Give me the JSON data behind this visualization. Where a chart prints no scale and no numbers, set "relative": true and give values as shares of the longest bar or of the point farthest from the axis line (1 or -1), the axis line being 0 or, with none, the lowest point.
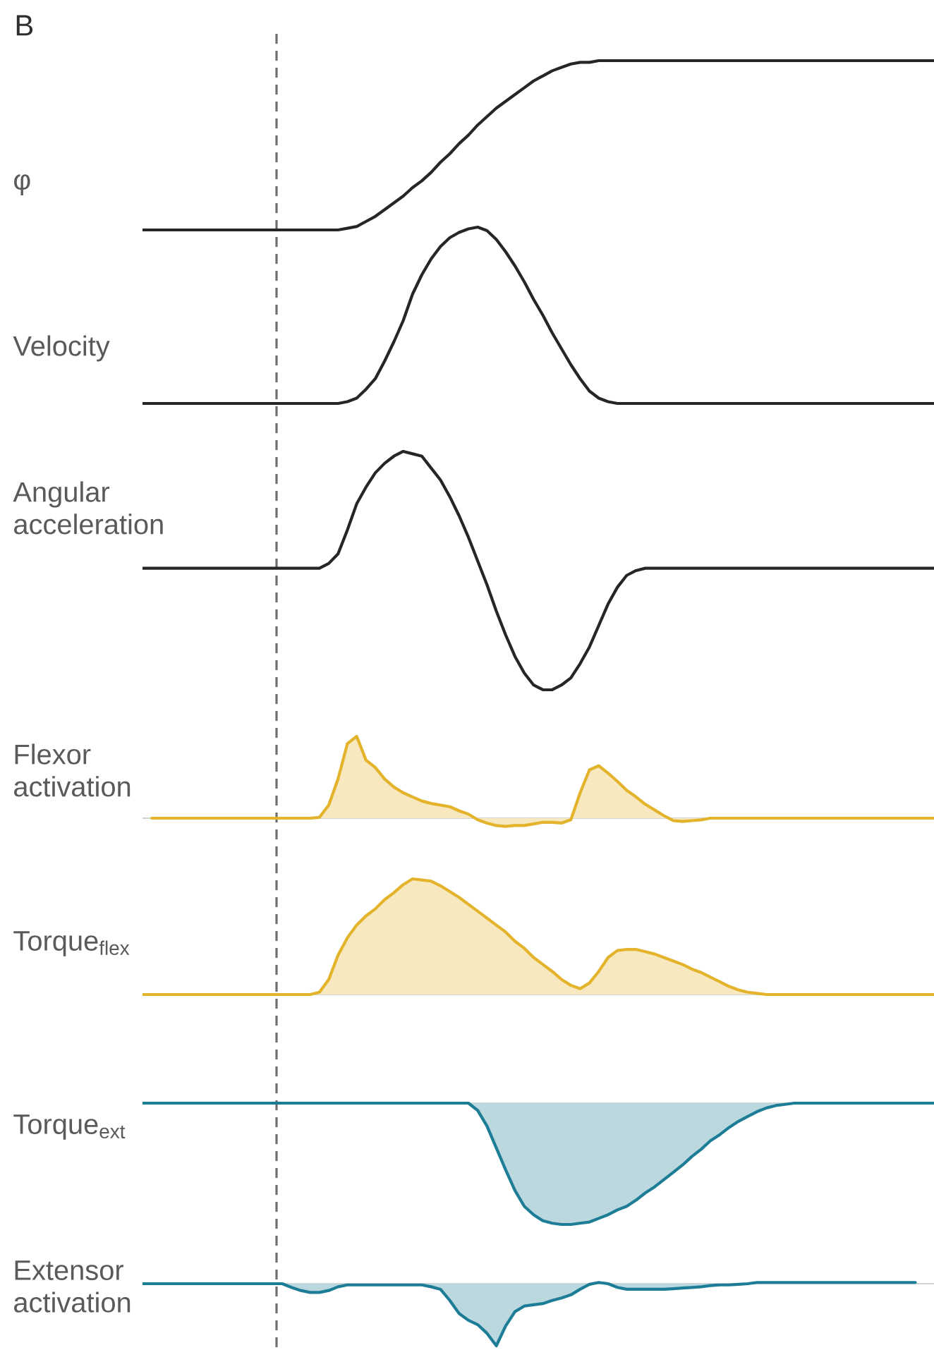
{
  "chart_data": [
    {
      "type": "line",
      "title": "B",
      "ylabel": "φ",
      "relative": true,
      "categories": [
        null,
        null,
        null,
        null,
        null,
        null,
        null,
        null,
        null,
        null,
        null,
        null,
        null,
        null,
        null,
        null,
        null,
        null,
        null,
        null,
        null,
        null,
        null,
        null,
        null,
        null,
        null,
        null,
        null,
        null,
        null,
        null,
        null,
        null,
        null,
        null,
        null,
        null,
        null,
        null,
        null,
        null,
        null,
        null,
        null,
        null,
        null,
        null,
        null,
        null,
        null,
        null,
        null,
        null,
        null,
        null,
        null,
        null,
        null,
        null,
        null,
        null,
        null,
        null,
        null,
        null,
        null,
        null,
        null,
        null,
        null,
        null,
        null,
        null,
        null,
        null,
        null,
        null,
        null,
        null,
        null,
        null,
        null,
        null,
        null,
        null
      ],
      "color": "#262626",
      "values": [
        0,
        0,
        0,
        0,
        0,
        0,
        0,
        0,
        0,
        0,
        0,
        0,
        0,
        0,
        0,
        0,
        0,
        0,
        0,
        0,
        0,
        0,
        0.01,
        0.02,
        0.05,
        0.08,
        0.12,
        0.16,
        0.2,
        0.25,
        0.29,
        0.34,
        0.4,
        0.45,
        0.51,
        0.56,
        0.62,
        0.67,
        0.72,
        0.76,
        0.8,
        0.84,
        0.88,
        0.91,
        0.94,
        0.96,
        0.98,
        0.99,
        0.99,
        1,
        1,
        1,
        1,
        1,
        1,
        1,
        1,
        1,
        1,
        1,
        1,
        1,
        1,
        1,
        1,
        1,
        1,
        1,
        1,
        1,
        1,
        1,
        1,
        1,
        1,
        1,
        1,
        1,
        1,
        1,
        1,
        1,
        1,
        1,
        1,
        1
      ]
    },
    {
      "type": "line",
      "ylabel": "Velocity",
      "relative": true,
      "categories": [
        null,
        null,
        null,
        null,
        null,
        null,
        null,
        null,
        null,
        null,
        null,
        null,
        null,
        null,
        null,
        null,
        null,
        null,
        null,
        null,
        null,
        null,
        null,
        null,
        null,
        null,
        null,
        null,
        null,
        null,
        null,
        null,
        null,
        null,
        null,
        null,
        null,
        null,
        null,
        null,
        null,
        null,
        null,
        null,
        null,
        null,
        null,
        null,
        null,
        null,
        null,
        null,
        null,
        null,
        null,
        null,
        null,
        null,
        null,
        null,
        null,
        null,
        null,
        null,
        null,
        null,
        null,
        null,
        null,
        null,
        null,
        null,
        null,
        null,
        null,
        null,
        null,
        null,
        null,
        null,
        null,
        null,
        null,
        null,
        null,
        null
      ],
      "color": "#262626",
      "values": [
        0,
        0,
        0,
        0,
        0,
        0,
        0,
        0,
        0,
        0,
        0,
        0,
        0,
        0,
        0,
        0,
        0,
        0,
        0,
        0,
        0,
        0,
        0.01,
        0.03,
        0.08,
        0.14,
        0.24,
        0.35,
        0.47,
        0.62,
        0.73,
        0.82,
        0.89,
        0.94,
        0.97,
        0.99,
        1,
        0.98,
        0.93,
        0.86,
        0.78,
        0.69,
        0.59,
        0.5,
        0.4,
        0.31,
        0.22,
        0.14,
        0.07,
        0.03,
        0.01,
        0,
        0,
        0,
        0,
        0,
        0,
        0,
        0,
        0,
        0,
        0,
        0,
        0,
        0,
        0,
        0,
        0,
        0,
        0,
        0,
        0,
        0,
        0,
        0,
        0,
        0,
        0,
        0,
        0,
        0,
        0,
        0,
        0,
        0,
        0
      ]
    },
    {
      "type": "line",
      "ylabel": "Angular acceleration",
      "relative": true,
      "categories": [
        null,
        null,
        null,
        null,
        null,
        null,
        null,
        null,
        null,
        null,
        null,
        null,
        null,
        null,
        null,
        null,
        null,
        null,
        null,
        null,
        null,
        null,
        null,
        null,
        null,
        null,
        null,
        null,
        null,
        null,
        null,
        null,
        null,
        null,
        null,
        null,
        null,
        null,
        null,
        null,
        null,
        null,
        null,
        null,
        null,
        null,
        null,
        null,
        null,
        null,
        null,
        null,
        null,
        null,
        null,
        null,
        null,
        null,
        null,
        null,
        null,
        null,
        null,
        null,
        null,
        null,
        null,
        null,
        null,
        null,
        null,
        null,
        null,
        null,
        null,
        null,
        null,
        null,
        null,
        null,
        null,
        null,
        null,
        null,
        null,
        null
      ],
      "color": "#262626",
      "values": [
        0.51,
        0.51,
        0.51,
        0.51,
        0.51,
        0.51,
        0.51,
        0.51,
        0.51,
        0.51,
        0.51,
        0.51,
        0.51,
        0.51,
        0.51,
        0.51,
        0.51,
        0.51,
        0.51,
        0.51,
        0.53,
        0.57,
        0.67,
        0.78,
        0.85,
        0.91,
        0.95,
        0.98,
        1,
        0.99,
        0.98,
        0.93,
        0.88,
        0.81,
        0.73,
        0.64,
        0.54,
        0.44,
        0.33,
        0.23,
        0.14,
        0.07,
        0.02,
        0,
        0,
        0.02,
        0.05,
        0.11,
        0.18,
        0.27,
        0.36,
        0.43,
        0.48,
        0.5,
        0.51,
        0.51,
        0.51,
        0.51,
        0.51,
        0.51,
        0.51,
        0.51,
        0.51,
        0.51,
        0.51,
        0.51,
        0.51,
        0.51,
        0.51,
        0.51,
        0.51,
        0.51,
        0.51,
        0.51,
        0.51,
        0.51,
        0.51,
        0.51,
        0.51,
        0.51,
        0.51,
        0.51,
        0.51,
        0.51,
        0.51,
        0.51
      ]
    },
    {
      "type": "area",
      "ylabel": "Flexor activation",
      "relative": true,
      "categories": [
        null,
        null,
        null,
        null,
        null,
        null,
        null,
        null,
        null,
        null,
        null,
        null,
        null,
        null,
        null,
        null,
        null,
        null,
        null,
        null,
        null,
        null,
        null,
        null,
        null,
        null,
        null,
        null,
        null,
        null,
        null,
        null,
        null,
        null,
        null,
        null,
        null,
        null,
        null,
        null,
        null,
        null,
        null,
        null,
        null,
        null,
        null,
        null,
        null,
        null,
        null,
        null,
        null,
        null,
        null,
        null,
        null,
        null,
        null,
        null,
        null,
        null,
        null,
        null,
        null,
        null,
        null,
        null,
        null,
        null,
        null,
        null,
        null,
        null,
        null,
        null,
        null,
        null,
        null,
        null,
        null,
        null,
        null,
        null,
        null,
        null
      ],
      "color": "#e3b42b",
      "values": [
        null,
        0,
        0,
        0,
        0,
        0,
        0,
        0,
        0,
        0,
        0,
        0,
        0,
        0,
        0,
        0,
        0,
        0,
        0,
        0.01,
        0.16,
        0.48,
        0.91,
        1,
        0.71,
        0.62,
        0.48,
        0.38,
        0.31,
        0.26,
        0.21,
        0.18,
        0.16,
        0.14,
        0.09,
        0.05,
        -0.02,
        -0.06,
        -0.09,
        -0.1,
        -0.09,
        -0.09,
        -0.07,
        -0.05,
        -0.05,
        -0.06,
        -0.02,
        0.31,
        0.59,
        0.64,
        0.55,
        0.45,
        0.34,
        0.26,
        0.17,
        0.1,
        0.03,
        -0.03,
        -0.04,
        -0.03,
        -0.02,
        0,
        0,
        0,
        0,
        0,
        0,
        0,
        0,
        0,
        0,
        0,
        0,
        0,
        0,
        0,
        0,
        0,
        0,
        0,
        0,
        0,
        0,
        0,
        0,
        0
      ]
    },
    {
      "type": "area",
      "ylabel": "Torque$_{flex}$",
      "relative": true,
      "categories": [
        null,
        null,
        null,
        null,
        null,
        null,
        null,
        null,
        null,
        null,
        null,
        null,
        null,
        null,
        null,
        null,
        null,
        null,
        null,
        null,
        null,
        null,
        null,
        null,
        null,
        null,
        null,
        null,
        null,
        null,
        null,
        null,
        null,
        null,
        null,
        null,
        null,
        null,
        null,
        null,
        null,
        null,
        null,
        null,
        null,
        null,
        null,
        null,
        null,
        null,
        null,
        null,
        null,
        null,
        null,
        null,
        null,
        null,
        null,
        null,
        null,
        null,
        null,
        null,
        null,
        null,
        null,
        null,
        null,
        null,
        null,
        null,
        null,
        null,
        null,
        null,
        null,
        null,
        null,
        null,
        null,
        null,
        null,
        null,
        null,
        null
      ],
      "color": "#e3b42b",
      "values": [
        0,
        0,
        0,
        0,
        0,
        0,
        0,
        0,
        0,
        0,
        0,
        0,
        0,
        0,
        0,
        0,
        0,
        0,
        0,
        0.02,
        0.13,
        0.34,
        0.49,
        0.6,
        0.68,
        0.74,
        0.82,
        0.88,
        0.95,
        1,
        0.99,
        0.98,
        0.94,
        0.89,
        0.84,
        0.78,
        0.72,
        0.66,
        0.6,
        0.54,
        0.46,
        0.4,
        0.32,
        0.26,
        0.2,
        0.13,
        0.08,
        0.05,
        0.1,
        0.2,
        0.32,
        0.38,
        0.39,
        0.39,
        0.37,
        0.35,
        0.32,
        0.29,
        0.26,
        0.22,
        0.19,
        0.15,
        0.11,
        0.07,
        0.04,
        0.02,
        0.01,
        0,
        0,
        0,
        0,
        0,
        0,
        0,
        0,
        0,
        0,
        0,
        0,
        0,
        0,
        0,
        0,
        0,
        0,
        0
      ]
    },
    {
      "type": "area",
      "ylabel": "Torque$_{ext}$",
      "relative": true,
      "categories": [
        null,
        null,
        null,
        null,
        null,
        null,
        null,
        null,
        null,
        null,
        null,
        null,
        null,
        null,
        null,
        null,
        null,
        null,
        null,
        null,
        null,
        null,
        null,
        null,
        null,
        null,
        null,
        null,
        null,
        null,
        null,
        null,
        null,
        null,
        null,
        null,
        null,
        null,
        null,
        null,
        null,
        null,
        null,
        null,
        null,
        null,
        null,
        null,
        null,
        null,
        null,
        null,
        null,
        null,
        null,
        null,
        null,
        null,
        null,
        null,
        null,
        null,
        null,
        null,
        null,
        null,
        null,
        null,
        null,
        null,
        null,
        null,
        null,
        null,
        null,
        null,
        null,
        null,
        null,
        null,
        null,
        null,
        null,
        null,
        null,
        null
      ],
      "color": "#1e7d96",
      "values": [
        0,
        0,
        0,
        0,
        0,
        0,
        0,
        0,
        0,
        0,
        0,
        0,
        0,
        0,
        0,
        0,
        0,
        0,
        0,
        0,
        0,
        0,
        0,
        0,
        0,
        0,
        0,
        0,
        0,
        0,
        0,
        0,
        0,
        0,
        0,
        0,
        -0.06,
        -0.19,
        -0.37,
        -0.55,
        -0.72,
        -0.85,
        -0.92,
        -0.97,
        -0.99,
        -1,
        -1,
        -0.99,
        -0.98,
        -0.95,
        -0.92,
        -0.88,
        -0.85,
        -0.8,
        -0.74,
        -0.69,
        -0.63,
        -0.57,
        -0.51,
        -0.44,
        -0.38,
        -0.31,
        -0.26,
        -0.2,
        -0.15,
        -0.11,
        -0.07,
        -0.04,
        -0.02,
        -0.01,
        0,
        0,
        0,
        0,
        0,
        0,
        0,
        0,
        0,
        0,
        0,
        0,
        0,
        0,
        0,
        0
      ]
    },
    {
      "type": "area",
      "ylabel": "Extensor activation",
      "relative": true,
      "categories": [
        null,
        null,
        null,
        null,
        null,
        null,
        null,
        null,
        null,
        null,
        null,
        null,
        null,
        null,
        null,
        null,
        null,
        null,
        null,
        null,
        null,
        null,
        null,
        null,
        null,
        null,
        null,
        null,
        null,
        null,
        null,
        null,
        null,
        null,
        null,
        null,
        null,
        null,
        null,
        null,
        null,
        null,
        null,
        null,
        null,
        null,
        null,
        null,
        null,
        null,
        null,
        null,
        null,
        null,
        null,
        null,
        null,
        null,
        null,
        null,
        null,
        null,
        null,
        null,
        null,
        null,
        null,
        null,
        null,
        null,
        null,
        null,
        null,
        null,
        null,
        null,
        null,
        null,
        null,
        null,
        null,
        null,
        null,
        null,
        null,
        null
      ],
      "color": "#1e7d96",
      "values": [
        0,
        0,
        0,
        0,
        0,
        0,
        0,
        0,
        0,
        0,
        0,
        0,
        0,
        0,
        0,
        0,
        -0.06,
        -0.11,
        -0.14,
        -0.14,
        -0.11,
        -0.05,
        -0.02,
        -0.02,
        -0.02,
        -0.02,
        -0.02,
        -0.02,
        -0.02,
        -0.02,
        -0.02,
        -0.05,
        -0.09,
        -0.27,
        -0.48,
        -0.59,
        -0.66,
        -0.8,
        -1,
        -0.68,
        -0.45,
        -0.36,
        -0.34,
        -0.32,
        -0.27,
        -0.23,
        -0.18,
        -0.09,
        -0.01,
        0.02,
        0,
        -0.06,
        -0.09,
        -0.09,
        -0.09,
        -0.09,
        -0.09,
        -0.08,
        -0.07,
        -0.06,
        -0.05,
        -0.03,
        -0.02,
        -0.02,
        -0.01,
        0,
        0.02,
        0.02,
        0.02,
        0.02,
        0.02,
        0.02,
        0.02,
        0.02,
        0.02,
        0.02,
        0.02,
        0.02,
        0.02,
        0.02,
        0.02,
        0.02,
        0.02,
        0.02,
        null,
        null
      ]
    }
  ]
}
